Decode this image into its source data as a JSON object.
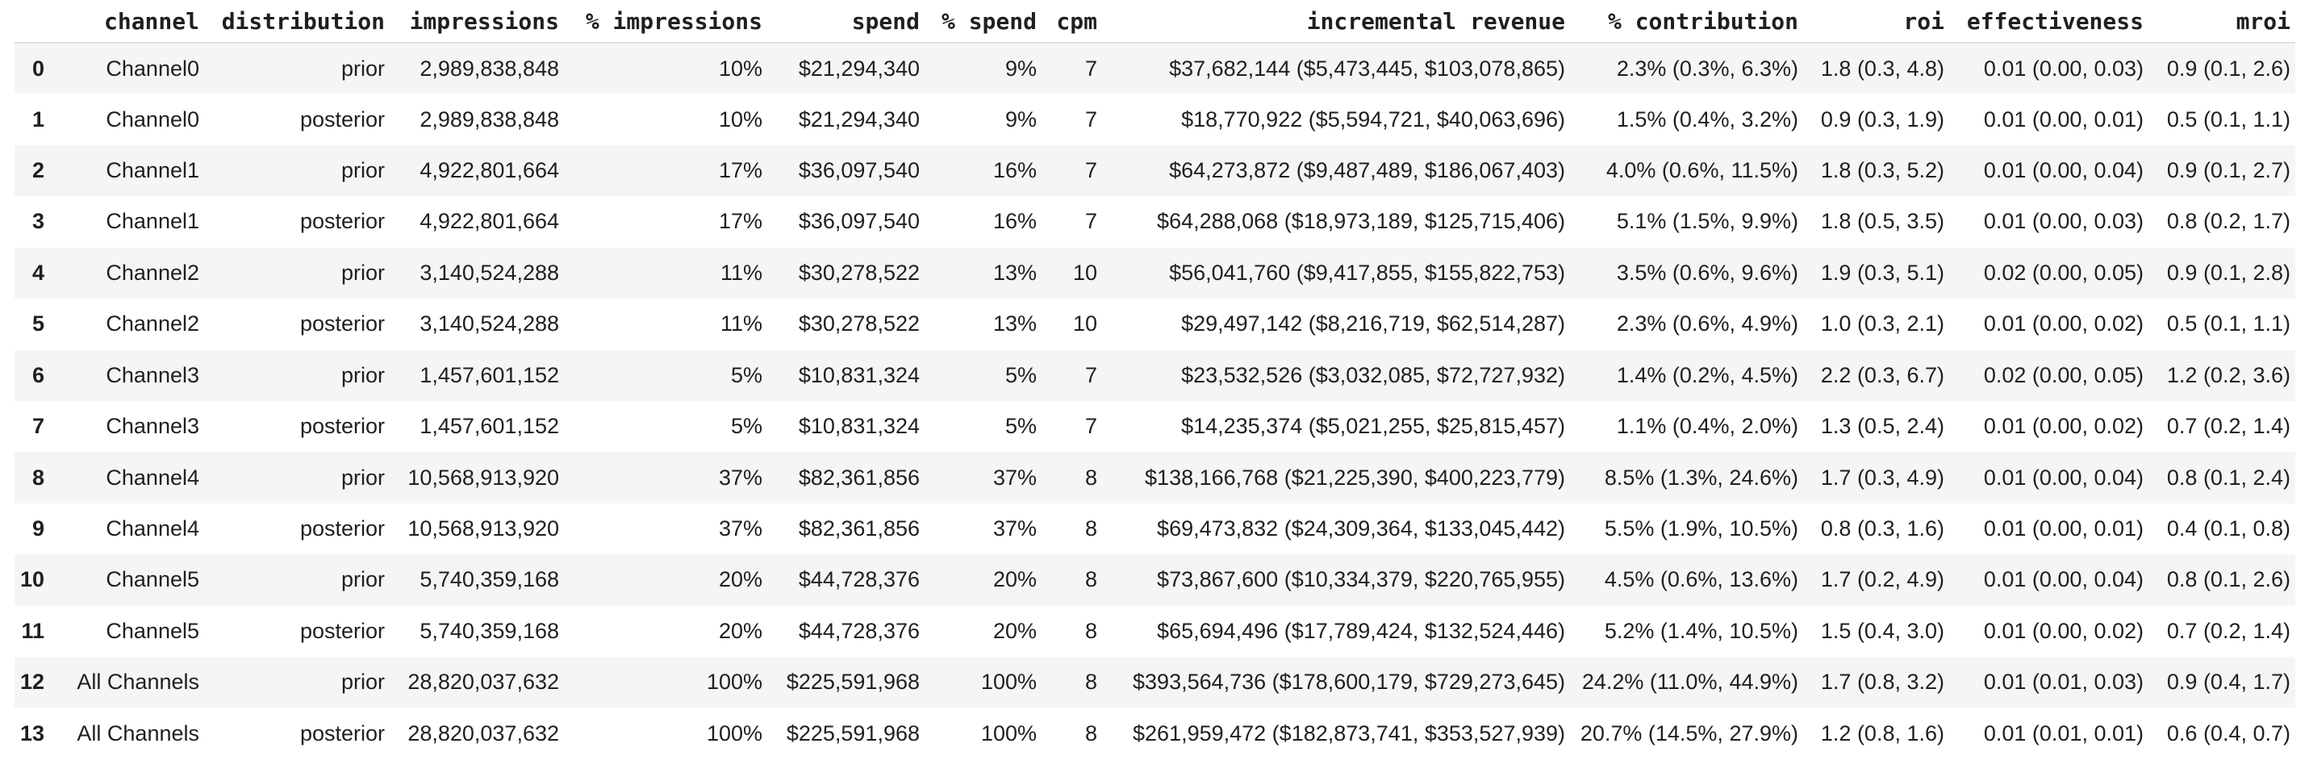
{
  "theme": {
    "stripe_color": "#f5f5f5",
    "divider_color": "#e1e1e1",
    "text_color": "#1f1f1f",
    "background_color": "#ffffff"
  },
  "table": {
    "columns": [
      "",
      "channel",
      "distribution",
      "impressions",
      "% impressions",
      "spend",
      "% spend",
      "cpm",
      "incremental revenue",
      "% contribution",
      "roi",
      "effectiveness",
      "mroi"
    ],
    "rows": [
      [
        "0",
        "Channel0",
        "prior",
        "2,989,838,848",
        "10%",
        "$21,294,340",
        "9%",
        "7",
        "$37,682,144 ($5,473,445, $103,078,865)",
        "2.3% (0.3%, 6.3%)",
        "1.8 (0.3, 4.8)",
        "0.01 (0.00, 0.03)",
        "0.9 (0.1, 2.6)"
      ],
      [
        "1",
        "Channel0",
        "posterior",
        "2,989,838,848",
        "10%",
        "$21,294,340",
        "9%",
        "7",
        "$18,770,922 ($5,594,721, $40,063,696)",
        "1.5% (0.4%, 3.2%)",
        "0.9 (0.3, 1.9)",
        "0.01 (0.00, 0.01)",
        "0.5 (0.1, 1.1)"
      ],
      [
        "2",
        "Channel1",
        "prior",
        "4,922,801,664",
        "17%",
        "$36,097,540",
        "16%",
        "7",
        "$64,273,872 ($9,487,489, $186,067,403)",
        "4.0% (0.6%, 11.5%)",
        "1.8 (0.3, 5.2)",
        "0.01 (0.00, 0.04)",
        "0.9 (0.1, 2.7)"
      ],
      [
        "3",
        "Channel1",
        "posterior",
        "4,922,801,664",
        "17%",
        "$36,097,540",
        "16%",
        "7",
        "$64,288,068 ($18,973,189, $125,715,406)",
        "5.1% (1.5%, 9.9%)",
        "1.8 (0.5, 3.5)",
        "0.01 (0.00, 0.03)",
        "0.8 (0.2, 1.7)"
      ],
      [
        "4",
        "Channel2",
        "prior",
        "3,140,524,288",
        "11%",
        "$30,278,522",
        "13%",
        "10",
        "$56,041,760 ($9,417,855, $155,822,753)",
        "3.5% (0.6%, 9.6%)",
        "1.9 (0.3, 5.1)",
        "0.02 (0.00, 0.05)",
        "0.9 (0.1, 2.8)"
      ],
      [
        "5",
        "Channel2",
        "posterior",
        "3,140,524,288",
        "11%",
        "$30,278,522",
        "13%",
        "10",
        "$29,497,142 ($8,216,719, $62,514,287)",
        "2.3% (0.6%, 4.9%)",
        "1.0 (0.3, 2.1)",
        "0.01 (0.00, 0.02)",
        "0.5 (0.1, 1.1)"
      ],
      [
        "6",
        "Channel3",
        "prior",
        "1,457,601,152",
        "5%",
        "$10,831,324",
        "5%",
        "7",
        "$23,532,526 ($3,032,085, $72,727,932)",
        "1.4% (0.2%, 4.5%)",
        "2.2 (0.3, 6.7)",
        "0.02 (0.00, 0.05)",
        "1.2 (0.2, 3.6)"
      ],
      [
        "7",
        "Channel3",
        "posterior",
        "1,457,601,152",
        "5%",
        "$10,831,324",
        "5%",
        "7",
        "$14,235,374 ($5,021,255, $25,815,457)",
        "1.1% (0.4%, 2.0%)",
        "1.3 (0.5, 2.4)",
        "0.01 (0.00, 0.02)",
        "0.7 (0.2, 1.4)"
      ],
      [
        "8",
        "Channel4",
        "prior",
        "10,568,913,920",
        "37%",
        "$82,361,856",
        "37%",
        "8",
        "$138,166,768 ($21,225,390, $400,223,779)",
        "8.5% (1.3%, 24.6%)",
        "1.7 (0.3, 4.9)",
        "0.01 (0.00, 0.04)",
        "0.8 (0.1, 2.4)"
      ],
      [
        "9",
        "Channel4",
        "posterior",
        "10,568,913,920",
        "37%",
        "$82,361,856",
        "37%",
        "8",
        "$69,473,832 ($24,309,364, $133,045,442)",
        "5.5% (1.9%, 10.5%)",
        "0.8 (0.3, 1.6)",
        "0.01 (0.00, 0.01)",
        "0.4 (0.1, 0.8)"
      ],
      [
        "10",
        "Channel5",
        "prior",
        "5,740,359,168",
        "20%",
        "$44,728,376",
        "20%",
        "8",
        "$73,867,600 ($10,334,379, $220,765,955)",
        "4.5% (0.6%, 13.6%)",
        "1.7 (0.2, 4.9)",
        "0.01 (0.00, 0.04)",
        "0.8 (0.1, 2.6)"
      ],
      [
        "11",
        "Channel5",
        "posterior",
        "5,740,359,168",
        "20%",
        "$44,728,376",
        "20%",
        "8",
        "$65,694,496 ($17,789,424, $132,524,446)",
        "5.2% (1.4%, 10.5%)",
        "1.5 (0.4, 3.0)",
        "0.01 (0.00, 0.02)",
        "0.7 (0.2, 1.4)"
      ],
      [
        "12",
        "All Channels",
        "prior",
        "28,820,037,632",
        "100%",
        "$225,591,968",
        "100%",
        "8",
        "$393,564,736 ($178,600,179, $729,273,645)",
        "24.2% (11.0%, 44.9%)",
        "1.7 (0.8, 3.2)",
        "0.01 (0.01, 0.03)",
        "0.9 (0.4, 1.7)"
      ],
      [
        "13",
        "All Channels",
        "posterior",
        "28,820,037,632",
        "100%",
        "$225,591,968",
        "100%",
        "8",
        "$261,959,472 ($182,873,741, $353,527,939)",
        "20.7% (14.5%, 27.9%)",
        "1.2 (0.8, 1.6)",
        "0.01 (0.01, 0.01)",
        "0.6 (0.4, 0.7)"
      ]
    ]
  }
}
